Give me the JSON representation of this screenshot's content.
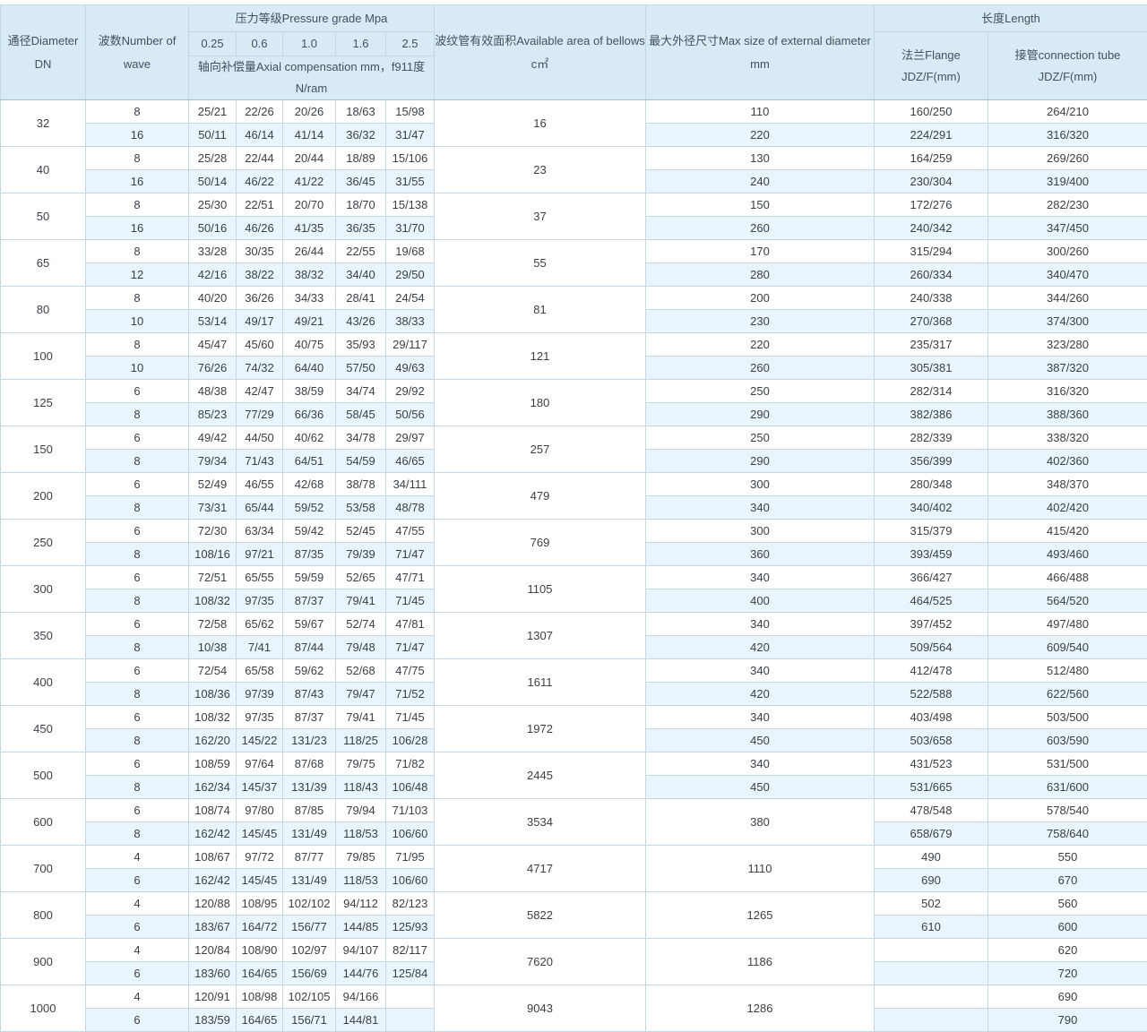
{
  "table": {
    "header": {
      "diameter": "通径Diameter DN",
      "wave": "波数Number of wave",
      "pressure_group": "压力等级Pressure grade Mpa",
      "pressure_cols": [
        "0.25",
        "0.6",
        "1.0",
        "1.6",
        "2.5"
      ],
      "compensation_line1": "轴向补偿量Axial compensation mm，f911度",
      "compensation_line2": "N/ram",
      "area": "波纹管有效面积Available area of bellows c㎡",
      "max_diameter": "最大外径尺寸Max size of external diameter mm",
      "length_group": "长度Length",
      "flange_line1": "法兰Flange",
      "flange_line2": "JDZ/F(mm)",
      "tube_line1": "接管connection tube",
      "tube_line2": "JDZ/F(mm)"
    },
    "groups": [
      {
        "dn": "32",
        "area": "16",
        "rows": [
          {
            "wave": "8",
            "p": [
              "25/21",
              "22/26",
              "20/26",
              "18/63",
              "15/98"
            ],
            "max": "110",
            "flange": "160/250",
            "tube": "264/210"
          },
          {
            "wave": "16",
            "p": [
              "50/11",
              "46/14",
              "41/14",
              "36/32",
              "31/47"
            ],
            "max": "220",
            "flange": "224/291",
            "tube": "316/320"
          }
        ]
      },
      {
        "dn": "40",
        "area": "23",
        "rows": [
          {
            "wave": "8",
            "p": [
              "25/28",
              "22/44",
              "20/44",
              "18/89",
              "15/106"
            ],
            "max": "130",
            "flange": "164/259",
            "tube": "269/260"
          },
          {
            "wave": "16",
            "p": [
              "50/14",
              "46/22",
              "41/22",
              "36/45",
              "31/55"
            ],
            "max": "240",
            "flange": "230/304",
            "tube": "319/400"
          }
        ]
      },
      {
        "dn": "50",
        "area": "37",
        "rows": [
          {
            "wave": "8",
            "p": [
              "25/30",
              "22/51",
              "20/70",
              "18/70",
              "15/138"
            ],
            "max": "150",
            "flange": "172/276",
            "tube": "282/230"
          },
          {
            "wave": "16",
            "p": [
              "50/16",
              "46/26",
              "41/35",
              "36/35",
              "31/70"
            ],
            "max": "260",
            "flange": "240/342",
            "tube": "347/450"
          }
        ]
      },
      {
        "dn": "65",
        "area": "55",
        "rows": [
          {
            "wave": "8",
            "p": [
              "33/28",
              "30/35",
              "26/44",
              "22/55",
              "19/68"
            ],
            "max": "170",
            "flange": "315/294",
            "tube": "300/260"
          },
          {
            "wave": "12",
            "p": [
              "42/16",
              "38/22",
              "38/32",
              "34/40",
              "29/50"
            ],
            "max": "280",
            "flange": "260/334",
            "tube": "340/470"
          }
        ]
      },
      {
        "dn": "80",
        "area": "81",
        "rows": [
          {
            "wave": "8",
            "p": [
              "40/20",
              "36/26",
              "34/33",
              "28/41",
              "24/54"
            ],
            "max": "200",
            "flange": "240/338",
            "tube": "344/260"
          },
          {
            "wave": "10",
            "p": [
              "53/14",
              "49/17",
              "49/21",
              "43/26",
              "38/33"
            ],
            "max": "230",
            "flange": "270/368",
            "tube": "374/300"
          }
        ]
      },
      {
        "dn": "100",
        "area": "121",
        "rows": [
          {
            "wave": "8",
            "p": [
              "45/47",
              "45/60",
              "40/75",
              "35/93",
              "29/117"
            ],
            "max": "220",
            "flange": "235/317",
            "tube": "323/280"
          },
          {
            "wave": "10",
            "p": [
              "76/26",
              "74/32",
              "64/40",
              "57/50",
              "49/63"
            ],
            "max": "260",
            "flange": "305/381",
            "tube": "387/320"
          }
        ]
      },
      {
        "dn": "125",
        "area": "180",
        "rows": [
          {
            "wave": "6",
            "p": [
              "48/38",
              "42/47",
              "38/59",
              "34/74",
              "29/92"
            ],
            "max": "250",
            "flange": "282/314",
            "tube": "316/320"
          },
          {
            "wave": "8",
            "p": [
              "85/23",
              "77/29",
              "66/36",
              "58/45",
              "50/56"
            ],
            "max": "290",
            "flange": "382/386",
            "tube": "388/360"
          }
        ]
      },
      {
        "dn": "150",
        "area": "257",
        "rows": [
          {
            "wave": "6",
            "p": [
              "49/42",
              "44/50",
              "40/62",
              "34/78",
              "29/97"
            ],
            "max": "250",
            "flange": "282/339",
            "tube": "338/320"
          },
          {
            "wave": "8",
            "p": [
              "79/34",
              "71/43",
              "64/51",
              "54/59",
              "46/65"
            ],
            "max": "290",
            "flange": "356/399",
            "tube": "402/360"
          }
        ]
      },
      {
        "dn": "200",
        "area": "479",
        "rows": [
          {
            "wave": "6",
            "p": [
              "52/49",
              "46/55",
              "42/68",
              "38/78",
              "34/111"
            ],
            "max": "300",
            "flange": "280/348",
            "tube": "348/370"
          },
          {
            "wave": "8",
            "p": [
              "73/31",
              "65/44",
              "59/52",
              "53/58",
              "48/78"
            ],
            "max": "340",
            "flange": "340/402",
            "tube": "402/420"
          }
        ]
      },
      {
        "dn": "250",
        "area": "769",
        "rows": [
          {
            "wave": "6",
            "p": [
              "72/30",
              "63/34",
              "59/42",
              "52/45",
              "47/55"
            ],
            "max": "300",
            "flange": "315/379",
            "tube": "415/420"
          },
          {
            "wave": "8",
            "p": [
              "108/16",
              "97/21",
              "87/35",
              "79/39",
              "71/47"
            ],
            "max": "360",
            "flange": "393/459",
            "tube": "493/460"
          }
        ]
      },
      {
        "dn": "300",
        "area": "1105",
        "rows": [
          {
            "wave": "6",
            "p": [
              "72/51",
              "65/55",
              "59/59",
              "52/65",
              "47/71"
            ],
            "max": "340",
            "flange": "366/427",
            "tube": "466/488"
          },
          {
            "wave": "8",
            "p": [
              "108/32",
              "97/35",
              "87/37",
              "79/41",
              "71/45"
            ],
            "max": "400",
            "flange": "464/525",
            "tube": "564/520"
          }
        ]
      },
      {
        "dn": "350",
        "area": "1307",
        "rows": [
          {
            "wave": "6",
            "p": [
              "72/58",
              "65/62",
              "59/67",
              "52/74",
              "47/81"
            ],
            "max": "340",
            "flange": "397/452",
            "tube": "497/480"
          },
          {
            "wave": "8",
            "p": [
              "10/38",
              "7/41",
              "87/44",
              "79/48",
              "71/47"
            ],
            "max": "420",
            "flange": "509/564",
            "tube": "609/540"
          }
        ]
      },
      {
        "dn": "400",
        "area": "1611",
        "rows": [
          {
            "wave": "6",
            "p": [
              "72/54",
              "65/58",
              "59/62",
              "52/68",
              "47/75"
            ],
            "max": "340",
            "flange": "412/478",
            "tube": "512/480"
          },
          {
            "wave": "8",
            "p": [
              "108/36",
              "97/39",
              "87/43",
              "79/47",
              "71/52"
            ],
            "max": "420",
            "flange": "522/588",
            "tube": "622/560"
          }
        ]
      },
      {
        "dn": "450",
        "area": "1972",
        "rows": [
          {
            "wave": "6",
            "p": [
              "108/32",
              "97/35",
              "87/37",
              "79/41",
              "71/45"
            ],
            "max": "340",
            "flange": "403/498",
            "tube": "503/500"
          },
          {
            "wave": "8",
            "p": [
              "162/20",
              "145/22",
              "131/23",
              "118/25",
              "106/28"
            ],
            "max": "450",
            "flange": "503/658",
            "tube": "603/590"
          }
        ]
      },
      {
        "dn": "500",
        "area": "2445",
        "rows": [
          {
            "wave": "6",
            "p": [
              "108/59",
              "97/64",
              "87/68",
              "79/75",
              "71/82"
            ],
            "max": "340",
            "flange": "431/523",
            "tube": "531/500"
          },
          {
            "wave": "8",
            "p": [
              "162/34",
              "145/37",
              "131/39",
              "118/43",
              "106/48"
            ],
            "max": "450",
            "flange": "531/665",
            "tube": "631/600"
          }
        ]
      },
      {
        "dn": "600",
        "area": "3534",
        "max_merged": "380",
        "rows": [
          {
            "wave": "6",
            "p": [
              "108/74",
              "97/80",
              "87/85",
              "79/94",
              "71/103"
            ],
            "flange": "478/548",
            "tube": "578/540"
          },
          {
            "wave": "8",
            "p": [
              "162/42",
              "145/45",
              "131/49",
              "118/53",
              "106/60"
            ],
            "flange": "658/679",
            "tube": "758/640"
          }
        ]
      },
      {
        "dn": "700",
        "area": "4717",
        "max_merged": "1110",
        "rows": [
          {
            "wave": "4",
            "p": [
              "108/67",
              "97/72",
              "87/77",
              "79/85",
              "71/95"
            ],
            "flange": "490",
            "tube": "550"
          },
          {
            "wave": "6",
            "p": [
              "162/42",
              "145/45",
              "131/49",
              "118/53",
              "106/60"
            ],
            "flange": "690",
            "tube": "670"
          }
        ]
      },
      {
        "dn": "800",
        "area": "5822",
        "max_merged": "1265",
        "rows": [
          {
            "wave": "4",
            "p": [
              "120/88",
              "108/95",
              "102/102",
              "94/112",
              "82/123"
            ],
            "flange": "502",
            "tube": "560"
          },
          {
            "wave": "6",
            "p": [
              "183/67",
              "164/72",
              "156/77",
              "144/85",
              "125/93"
            ],
            "flange": "610",
            "tube": "600"
          }
        ]
      },
      {
        "dn": "900",
        "area": "7620",
        "max_merged": "1186",
        "rows": [
          {
            "wave": "4",
            "p": [
              "120/84",
              "108/90",
              "102/97",
              "94/107",
              "82/117"
            ],
            "flange": "",
            "tube": "620"
          },
          {
            "wave": "6",
            "p": [
              "183/60",
              "164/65",
              "156/69",
              "144/76",
              "125/84"
            ],
            "flange": "",
            "tube": "720"
          }
        ]
      },
      {
        "dn": "1000",
        "area": "9043",
        "max_merged": "1286",
        "rows": [
          {
            "wave": "4",
            "p": [
              "120/91",
              "108/98",
              "102/105",
              "94/166",
              ""
            ],
            "flange": "",
            "tube": "690"
          },
          {
            "wave": "6",
            "p": [
              "183/59",
              "164/65",
              "156/71",
              "144/81",
              ""
            ],
            "flange": "",
            "tube": "790"
          }
        ]
      }
    ]
  },
  "colors": {
    "header_bg": "#d9eaf7",
    "stripe_bg": "#e9f5fc",
    "row_bg": "#ffffff",
    "border": "#c6d6e2",
    "group_border": "#a9c0d0",
    "header_text": "#44505c",
    "data_text": "#3a3f44"
  }
}
